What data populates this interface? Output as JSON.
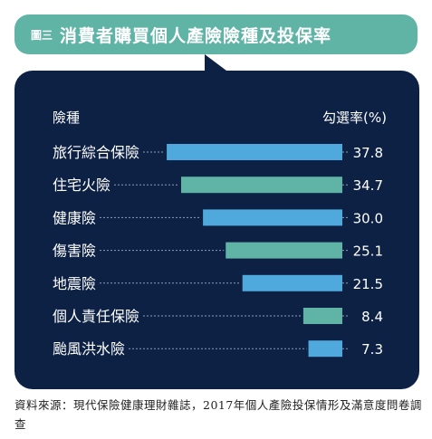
{
  "header": {
    "figure_label": "圖三",
    "title": "消費者購買個人產險險種及投保率"
  },
  "colors": {
    "panel_bg": "#0d2145",
    "bubble": "#5fb4a6",
    "bar_blue": "#4fa9dc",
    "bar_teal": "#5fb4a6",
    "text": "#ffffff",
    "leader": "#8fa0b8"
  },
  "chart_data": {
    "type": "bar",
    "orientation": "horizontal",
    "title": "消費者購買個人產險險種及投保率",
    "category_header": "險種",
    "value_header": "勾選率(%)",
    "categories": [
      "旅行綜合保險",
      "住宅火險",
      "健康險",
      "傷害險",
      "地震險",
      "個人責任保險",
      "颱風洪水險"
    ],
    "values": [
      37.8,
      34.7,
      30.0,
      25.1,
      21.5,
      8.4,
      7.3
    ],
    "value_labels": [
      "37.8",
      "34.7",
      "30.0",
      "25.1",
      "21.5",
      "8.4",
      "7.3"
    ],
    "bar_colors": [
      "#4fa9dc",
      "#5fb4a6",
      "#4fa9dc",
      "#5fb4a6",
      "#4fa9dc",
      "#5fb4a6",
      "#4fa9dc"
    ],
    "xlim": [
      0,
      40
    ],
    "grid": false
  },
  "source_note": "資料來源：現代保險健康理財雜誌，2017年個人產險投保情形及滿意度問卷調查"
}
